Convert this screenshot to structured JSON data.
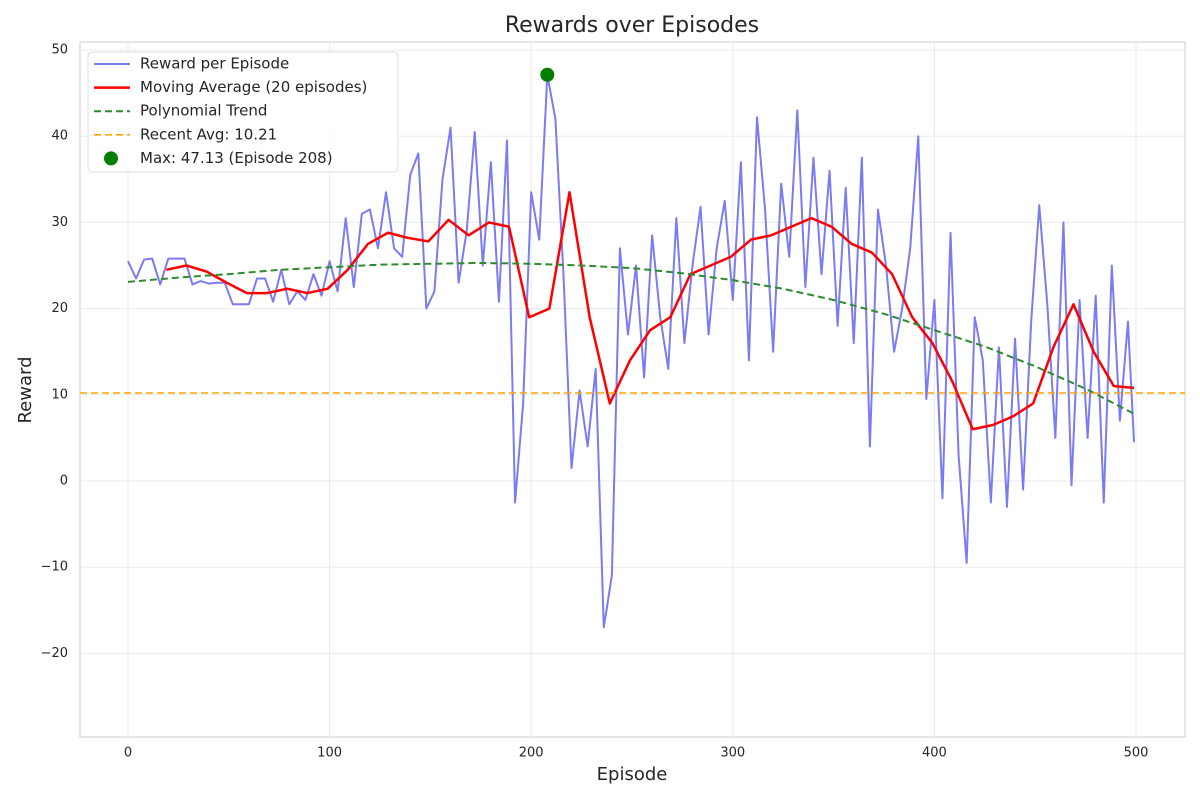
{
  "chart_data": {
    "type": "line",
    "title": "Rewards over Episodes",
    "xlabel": "Episode",
    "ylabel": "Reward",
    "xlim": [
      -23.8,
      524.3
    ],
    "ylim": [
      -29.7,
      50.93
    ],
    "xticks": [
      0,
      100,
      200,
      300,
      400,
      500
    ],
    "yticks": [
      {
        "value": -20,
        "label": "−20"
      },
      {
        "value": -10,
        "label": "−10"
      },
      0,
      10,
      20,
      30,
      40,
      50
    ],
    "grid": true,
    "legend": "upper left",
    "series": [
      {
        "name": "Reward per Episode",
        "color": "#7b7bf5",
        "linestyle": "solid",
        "width": 2,
        "x": [
          0,
          4,
          8,
          12,
          16,
          20,
          24,
          28,
          32,
          36,
          40,
          44,
          48,
          52,
          56,
          60,
          64,
          68,
          72,
          76,
          80,
          84,
          88,
          92,
          96,
          100,
          104,
          108,
          112,
          116,
          120,
          124,
          128,
          132,
          136,
          140,
          144,
          148,
          152,
          156,
          160,
          164,
          168,
          172,
          176,
          180,
          184,
          188,
          192,
          196,
          200,
          204,
          208,
          212,
          216,
          220,
          224,
          228,
          232,
          236,
          240,
          244,
          248,
          252,
          256,
          260,
          264,
          268,
          272,
          276,
          280,
          284,
          288,
          292,
          296,
          300,
          304,
          308,
          312,
          316,
          320,
          324,
          328,
          332,
          336,
          340,
          344,
          348,
          352,
          356,
          360,
          364,
          368,
          372,
          376,
          380,
          384,
          388,
          392,
          396,
          400,
          404,
          408,
          412,
          416,
          420,
          424,
          428,
          432,
          436,
          440,
          444,
          448,
          452,
          456,
          460,
          464,
          468,
          472,
          476,
          480,
          484,
          488,
          492,
          496,
          499
        ],
        "values": [
          25.5,
          23.5,
          25.7,
          25.8,
          22.8,
          25.8,
          25.8,
          25.8,
          22.8,
          23.2,
          22.9,
          23.0,
          23.0,
          20.5,
          20.5,
          20.5,
          23.5,
          23.5,
          20.8,
          24.5,
          20.5,
          22.0,
          21.0,
          24.0,
          21.5,
          25.5,
          22.0,
          30.5,
          22.5,
          31.0,
          31.5,
          27.0,
          33.5,
          27.0,
          26.0,
          35.5,
          38.0,
          20.0,
          22.0,
          35.0,
          41.0,
          23.0,
          29.0,
          40.5,
          25.0,
          37.0,
          20.8,
          39.5,
          -2.5,
          9.0,
          33.5,
          28.0,
          47.13,
          42.0,
          24.0,
          1.5,
          10.5,
          4.0,
          13.0,
          -17.0,
          -11.0,
          27.0,
          17.0,
          25.0,
          12.0,
          28.5,
          19.0,
          13.0,
          30.5,
          16.0,
          25.0,
          31.8,
          17.0,
          27.0,
          32.5,
          21.0,
          37.0,
          14.0,
          42.2,
          31.5,
          15.0,
          34.5,
          26.0,
          43.0,
          22.5,
          37.5,
          24.0,
          36.0,
          18.0,
          34.0,
          16.0,
          37.5,
          4.0,
          31.5,
          25.0,
          15.0,
          20.0,
          27.0,
          40.0,
          9.5,
          21.0,
          -2.0,
          28.8,
          3.0,
          -9.5,
          19.0,
          14.0,
          -2.5,
          15.5,
          -3.0,
          16.5,
          -1.0,
          18.5,
          32.0,
          20.5,
          5.0,
          30.0,
          -0.5,
          21.0,
          5.0,
          21.5,
          -2.5,
          25.0,
          7.0,
          18.5,
          4.5
        ]
      },
      {
        "name": "Moving Average (20 episodes)",
        "color": "#ff0000",
        "linestyle": "solid",
        "width": 2.5,
        "x": [
          19,
          29,
          39,
          49,
          59,
          69,
          79,
          89,
          99,
          109,
          119,
          129,
          139,
          149,
          159,
          169,
          179,
          189,
          199,
          209,
          219,
          229,
          239,
          249,
          259,
          269,
          279,
          289,
          299,
          309,
          319,
          329,
          339,
          349,
          359,
          369,
          379,
          389,
          399,
          409,
          419,
          429,
          439,
          449,
          459,
          469,
          479,
          489,
          499
        ],
        "values": [
          24.5,
          25.0,
          24.3,
          23.0,
          21.8,
          21.8,
          22.3,
          21.8,
          22.3,
          24.5,
          27.5,
          28.8,
          28.2,
          27.8,
          30.3,
          28.5,
          30.0,
          29.5,
          19.0,
          20.0,
          33.5,
          19.0,
          9.0,
          14.0,
          17.5,
          19.0,
          24.0,
          25.0,
          26.0,
          28.0,
          28.5,
          29.5,
          30.5,
          29.5,
          27.5,
          26.5,
          24.0,
          19.0,
          16.0,
          11.5,
          6.0,
          6.5,
          7.5,
          9.0,
          15.5,
          20.5,
          15.0,
          11.0,
          10.8
        ]
      },
      {
        "name": "Polynomial Trend",
        "color": "#2e8b2e",
        "linestyle": "dashed",
        "width": 2,
        "x": [
          0,
          25,
          50,
          75,
          100,
          125,
          150,
          175,
          200,
          225,
          250,
          275,
          300,
          325,
          350,
          375,
          400,
          425,
          450,
          475,
          499
        ],
        "values": [
          23.1,
          23.6,
          24.0,
          24.5,
          24.8,
          25.1,
          25.2,
          25.3,
          25.2,
          25.0,
          24.7,
          24.1,
          23.3,
          22.3,
          21.0,
          19.4,
          17.5,
          15.6,
          13.3,
          10.7,
          7.8
        ]
      }
    ],
    "hlines": [
      {
        "name": "Recent Avg: 10.21",
        "value": 10.21,
        "color": "#ffa500"
      }
    ],
    "points": [
      {
        "name": "Max: 47.13 (Episode 208)",
        "x": 208,
        "y": 47.13,
        "color": "#008000"
      }
    ]
  }
}
